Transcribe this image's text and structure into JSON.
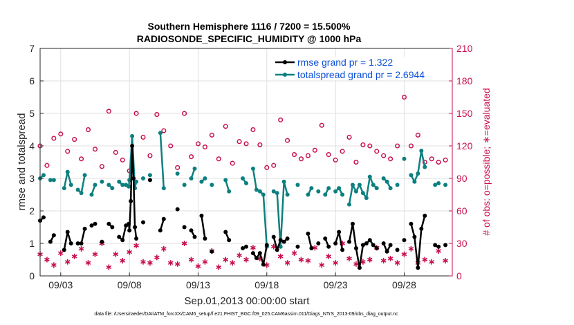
{
  "chart_data": {
    "type": "line",
    "title": "Southern Hemisphere 1116 / 7200 = 15.500%",
    "subtitle": "RADIOSONDE_SPECIFIC_HUMIDITY @ 1000 hPa",
    "xlabel": "Sep.01,2013 00:00:00 start",
    "ylabel": "rmse and totalspread",
    "y2label": "# of obs: o=possible; ∗=evaluated",
    "footer": "data file: /Users/raeder/DAI/ATM_forcXX/CAM6_setup/f.e21.FHIST_BGC.f09_025.CAM6assim.011/Diags_NTrS_2013-09/obs_diag_output.nc",
    "xlim": [
      1.5,
      31.5
    ],
    "ylim": [
      0,
      7
    ],
    "y2lim": [
      0,
      210
    ],
    "xticks": [
      3,
      8,
      13,
      18,
      23,
      28
    ],
    "xtick_labels": [
      "09/03",
      "09/08",
      "09/13",
      "09/18",
      "09/23",
      "09/28"
    ],
    "yticks": [
      0,
      1,
      2,
      3,
      4,
      5,
      6,
      7
    ],
    "ytick_labels": [
      "0",
      "1",
      "2",
      "3",
      "4",
      "5",
      "6",
      "7"
    ],
    "y2ticks": [
      0,
      30,
      60,
      90,
      120,
      150,
      180,
      210
    ],
    "y2tick_labels": [
      "0",
      "30",
      "60",
      "90",
      "120",
      "150",
      "180",
      "210"
    ],
    "colors": {
      "rmse": "#000000",
      "totalspread": "#0d7f7f",
      "counts": "#c8104c",
      "legend_text": "#0b4fd6"
    },
    "legend": [
      "rmse grand pr = 1.322",
      "totalspread grand pr = 2.6944"
    ],
    "series": [
      {
        "name": "rmse",
        "x": [
          1.5,
          1.75,
          2.25,
          2.5,
          3.25,
          3.5,
          3.75,
          4.25,
          4.5,
          4.75,
          5.25,
          5.5,
          6.0,
          6.5,
          6.75,
          7.25,
          7.5,
          7.75,
          7.95,
          8.0,
          8.1,
          8.2,
          8.3,
          8.4,
          8.5,
          9.0,
          9.5,
          10.25,
          10.5,
          11.5,
          12.0,
          12.5,
          12.75,
          13.25,
          13.5,
          14.0,
          15.0,
          15.25,
          16.25,
          16.5,
          17.0,
          17.25,
          17.5,
          17.75,
          18.0,
          18.5,
          18.75,
          19.0,
          19.25,
          19.5,
          20.25,
          21.0,
          21.25,
          21.75,
          22.25,
          22.5,
          23.0,
          23.25,
          23.5,
          24.0,
          24.25,
          24.5,
          24.75,
          25.0,
          25.25,
          25.5,
          25.75,
          26.0,
          26.5,
          26.75,
          27.0,
          27.5,
          28.0,
          28.5,
          28.75,
          29.0,
          29.25,
          29.5,
          30.25,
          30.5,
          31.0
        ],
        "y": [
          1.7,
          1.8,
          1.05,
          1.25,
          0.8,
          1.35,
          1.0,
          1.0,
          1.0,
          1.45,
          1.55,
          1.6,
          1.05,
          1.6,
          1.5,
          1.2,
          1.1,
          1.55,
          1.6,
          1.4,
          2.3,
          4.0,
          3.0,
          1.5,
          1.15,
          1.65,
          2.95,
          1.4,
          1.75,
          2.05,
          1.5,
          1.4,
          1.2,
          1.85,
          1.15,
          0.75,
          1.35,
          1.1,
          0.85,
          0.9,
          0.7,
          0.55,
          0.7,
          0.35,
          0.95,
          1.2,
          0.8,
          1.1,
          1.05,
          1.15,
          0.9,
          1.3,
          0.85,
          1.0,
          1.15,
          0.9,
          1.0,
          1.35,
          0.8,
          1.05,
          1.6,
          0.85,
          0.25,
          0.95,
          1.0,
          1.1,
          0.95,
          0.85,
          1.0,
          0.75,
          0.95,
          0.8,
          1.1,
          1.6,
          1.2,
          0.25,
          1.45,
          1.85,
          0.95,
          0.9,
          0.95
        ]
      },
      {
        "name": "totalspread",
        "x": [
          1.5,
          1.75,
          2.25,
          2.5,
          3.25,
          3.5,
          3.75,
          4.25,
          4.5,
          4.75,
          5.25,
          5.5,
          6.0,
          6.5,
          6.75,
          7.25,
          7.5,
          7.75,
          7.95,
          8.0,
          8.2,
          8.4,
          8.5,
          9.0,
          9.5,
          10.25,
          10.5,
          11.5,
          12.0,
          12.5,
          12.75,
          13.25,
          13.5,
          14.0,
          15.0,
          15.25,
          16.25,
          16.5,
          17.0,
          17.25,
          17.5,
          17.75,
          18.0,
          18.5,
          18.75,
          19.0,
          19.25,
          19.5,
          20.25,
          21.0,
          21.25,
          21.75,
          22.25,
          22.5,
          23.0,
          23.25,
          23.5,
          24.0,
          24.25,
          24.5,
          24.75,
          25.0,
          25.25,
          25.5,
          25.75,
          26.0,
          26.5,
          26.75,
          27.0,
          27.5,
          28.0,
          28.5,
          28.75,
          29.0,
          29.25,
          29.5,
          30.25,
          30.5,
          31.0
        ],
        "y": [
          3.0,
          3.1,
          2.95,
          2.95,
          2.7,
          3.2,
          2.8,
          2.65,
          2.55,
          3.1,
          2.5,
          2.8,
          2.9,
          2.8,
          2.7,
          2.9,
          2.8,
          2.8,
          2.75,
          2.95,
          4.3,
          2.7,
          2.9,
          3.0,
          3.1,
          4.4,
          2.7,
          3.15,
          2.8,
          3.0,
          3.3,
          2.9,
          3.0,
          2.8,
          2.95,
          2.6,
          3.0,
          2.85,
          3.3,
          2.65,
          2.6,
          2.5,
          0.9,
          2.6,
          2.55,
          0.9,
          2.9,
          2.5,
          2.8,
          2.5,
          2.7,
          2.6,
          2.5,
          2.7,
          2.6,
          2.7,
          2.5,
          2.2,
          2.8,
          2.6,
          2.8,
          2.55,
          2.4,
          3.05,
          2.8,
          2.7,
          3.0,
          2.9,
          2.7,
          2.8,
          3.6,
          3.1,
          2.9,
          3.15,
          3.85,
          3.35,
          2.8,
          2.85,
          2.8
        ]
      },
      {
        "name": "possible",
        "x": [
          1.5,
          2.0,
          2.5,
          3.0,
          3.5,
          4.0,
          4.5,
          5.0,
          5.5,
          6.0,
          6.5,
          7.0,
          7.5,
          8.0,
          8.5,
          9.0,
          9.5,
          10.0,
          10.5,
          11.0,
          11.5,
          12.0,
          12.5,
          13.0,
          13.5,
          14.0,
          14.5,
          15.0,
          15.5,
          16.0,
          16.5,
          17.0,
          17.5,
          18.0,
          18.5,
          19.0,
          19.5,
          20.0,
          20.5,
          21.0,
          21.5,
          22.0,
          22.5,
          23.0,
          23.5,
          24.0,
          24.5,
          25.0,
          25.5,
          26.0,
          26.5,
          27.0,
          27.5,
          28.0,
          28.5,
          29.0,
          29.5,
          30.0,
          30.5,
          31.0
        ],
        "y": [
          120,
          102,
          127,
          131,
          115,
          126,
          108,
          135,
          117,
          101,
          152,
          114,
          107,
          97,
          150,
          128,
          111,
          149,
          134,
          120,
          100,
          150,
          110,
          122,
          119,
          130,
          108,
          138,
          104,
          124,
          122,
          135,
          121,
          100,
          102,
          144,
          125,
          112,
          108,
          111,
          116,
          139,
          112,
          107,
          115,
          128,
          105,
          121,
          120,
          115,
          111,
          108,
          120,
          165,
          120,
          130,
          105,
          108,
          105,
          107
        ]
      },
      {
        "name": "evaluated",
        "x": [
          1.5,
          2.0,
          2.5,
          3.0,
          3.5,
          4.0,
          4.5,
          5.0,
          5.5,
          6.0,
          6.5,
          7.0,
          7.5,
          8.0,
          8.5,
          9.0,
          9.5,
          10.0,
          10.5,
          11.0,
          11.5,
          12.0,
          12.5,
          13.0,
          13.5,
          14.0,
          14.5,
          15.0,
          15.5,
          16.0,
          16.5,
          17.0,
          17.5,
          18.0,
          18.5,
          19.0,
          19.5,
          20.0,
          20.5,
          21.0,
          21.5,
          22.0,
          22.5,
          23.0,
          23.5,
          24.0,
          24.5,
          25.0,
          25.5,
          26.0,
          26.5,
          27.0,
          27.5,
          28.0,
          28.5,
          29.0,
          29.5,
          30.0,
          30.5,
          31.0
        ],
        "y": [
          20,
          15,
          10,
          21,
          13,
          18,
          25,
          12,
          20,
          30,
          8,
          20,
          14,
          22,
          28,
          13,
          12,
          17,
          25,
          12,
          11,
          30,
          15,
          9,
          13,
          23,
          8,
          15,
          12,
          19,
          15,
          26,
          16,
          10,
          27,
          18,
          12,
          21,
          15,
          14,
          26,
          10,
          18,
          12,
          30,
          16,
          11,
          13,
          15,
          26,
          14,
          16,
          12,
          20,
          25,
          12,
          15,
          13,
          23,
          14
        ]
      }
    ]
  }
}
